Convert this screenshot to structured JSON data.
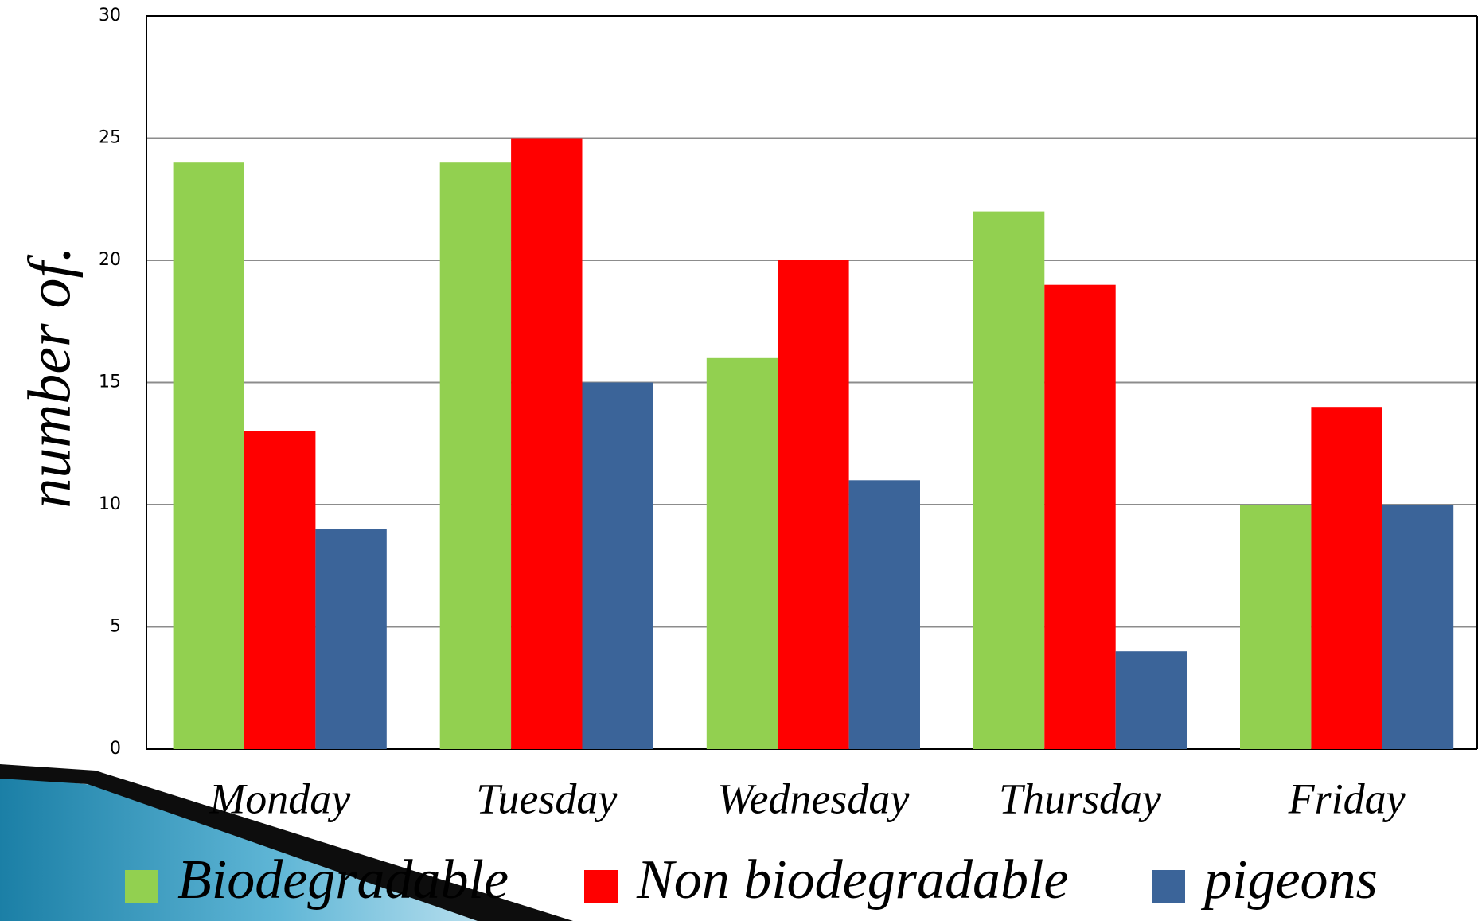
{
  "chart_data": {
    "type": "bar",
    "y_label": "number of.",
    "categories": [
      "Monday",
      "Tuesday",
      "Wednesday",
      "Thursday",
      "Friday"
    ],
    "series": [
      {
        "name": "Biodegradable",
        "color": "#92d050",
        "values": [
          24,
          24,
          16,
          22,
          10
        ]
      },
      {
        "name": "Non biodegradable",
        "color": "#ff0000",
        "values": [
          13,
          25,
          20,
          19,
          14
        ]
      },
      {
        "name": "pigeons",
        "color": "#3b6499",
        "values": [
          9,
          15,
          11,
          4,
          10
        ]
      }
    ],
    "ylim": [
      0,
      30
    ],
    "yticks": [
      0,
      5,
      10,
      15,
      20,
      25,
      30
    ],
    "grid": true,
    "legend": "bottom"
  }
}
